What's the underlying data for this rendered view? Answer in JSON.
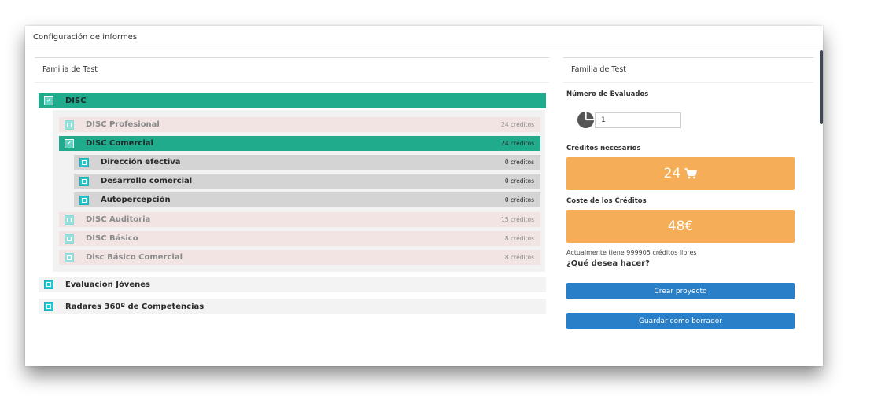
{
  "window": {
    "title": "Configuración de informes"
  },
  "left": {
    "heading": "Familia de Test",
    "families": [
      {
        "name": "DISC",
        "checked": true,
        "children": [
          {
            "name": "DISC Profesional",
            "credits": "24 créditos"
          },
          {
            "name": "DISC Comercial",
            "credits": "24 créditos",
            "checked": true,
            "children": [
              {
                "name": "Dirección efectiva",
                "credits": "0 créditos"
              },
              {
                "name": "Desarrollo comercial",
                "credits": "0 créditos"
              },
              {
                "name": "Autopercepción",
                "credits": "0 créditos"
              }
            ]
          },
          {
            "name": "DISC Auditoria",
            "credits": "15 créditos"
          },
          {
            "name": "DISC Básico",
            "credits": "8 créditos"
          },
          {
            "name": "Disc Básico Comercial",
            "credits": "8 créditos"
          }
        ]
      },
      {
        "name": "Evaluacion Jóvenes"
      },
      {
        "name": "Radares 360º de Competencias"
      }
    ]
  },
  "right": {
    "heading": "Familia de Test",
    "evaluated_label": "Número de Evaluados",
    "evaluated_value": "1",
    "credits_needed_label": "Créditos necesarios",
    "credits_needed_value": "24",
    "cart_icon": "shopping-cart-icon",
    "cost_label": "Coste de los Créditos",
    "cost_value": "48€",
    "free_credits_text": "Actualmente tiene 999905 créditos libres",
    "question": "¿Qué desea hacer?",
    "create_button": "Crear proyecto",
    "draft_button": "Guardar como borrador"
  },
  "colors": {
    "teal": "#20ab8d",
    "checkbox_cyan": "#23c6d0",
    "orange": "#f6ad58",
    "blue": "#2a7fc9",
    "pink_row": "#f1e4e3",
    "gray_row": "#d4d4d4",
    "white_row": "#f3f3f3"
  }
}
